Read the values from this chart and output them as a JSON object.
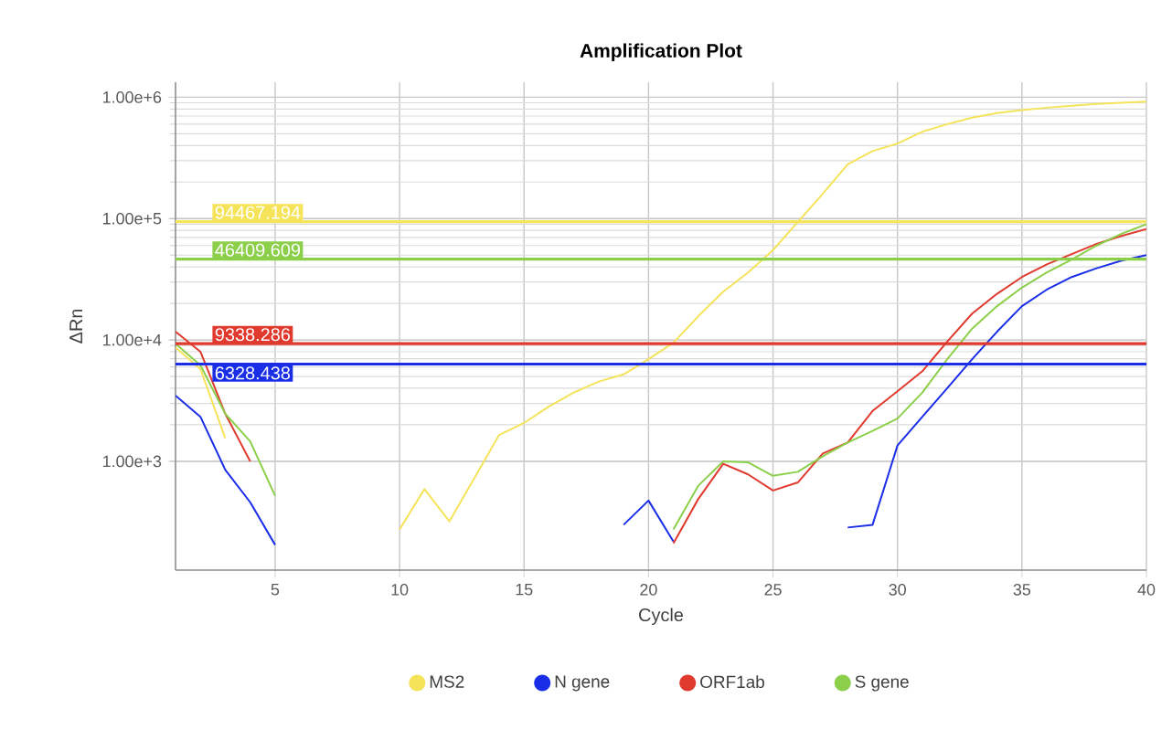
{
  "chart_data": {
    "type": "line",
    "title": "Amplification Plot",
    "xlabel": "Cycle",
    "ylabel": "ΔRn",
    "x": [
      1,
      2,
      3,
      4,
      5,
      6,
      7,
      8,
      9,
      10,
      11,
      12,
      13,
      14,
      15,
      16,
      17,
      18,
      19,
      20,
      21,
      22,
      23,
      24,
      25,
      26,
      27,
      28,
      29,
      30,
      31,
      32,
      33,
      34,
      35,
      36,
      37,
      38,
      39,
      40
    ],
    "series": [
      {
        "name": "MS2",
        "color": "#f5e35a",
        "values": [
          8700,
          5750,
          1550,
          null,
          null,
          null,
          null,
          null,
          null,
          275,
          590,
          320,
          725,
          1650,
          2070,
          2830,
          3690,
          4540,
          5200,
          6950,
          9500,
          15700,
          25000,
          36000,
          55000,
          94000,
          160000,
          280000,
          360000,
          415000,
          520000,
          600000,
          680000,
          740000,
          785000,
          820000,
          850000,
          880000,
          900000,
          920000
        ]
      },
      {
        "name": "N gene",
        "color": "#1a2ee8",
        "values": [
          3480,
          2330,
          850,
          460,
          205,
          null,
          null,
          null,
          null,
          null,
          null,
          null,
          null,
          null,
          null,
          null,
          null,
          null,
          300,
          475,
          218,
          null,
          null,
          null,
          null,
          null,
          null,
          285,
          300,
          1350,
          2330,
          4000,
          6950,
          11700,
          19000,
          26000,
          33000,
          39000,
          45000,
          50000
        ]
      },
      {
        "name": "ORF1ab",
        "color": "#e03a2e",
        "values": [
          11700,
          8000,
          2460,
          1000,
          null,
          null,
          null,
          null,
          null,
          null,
          null,
          null,
          null,
          null,
          null,
          null,
          null,
          null,
          null,
          null,
          211,
          490,
          955,
          780,
          575,
          670,
          1160,
          1430,
          2600,
          3780,
          5530,
          9700,
          16500,
          24000,
          33000,
          42000,
          51000,
          62000,
          72000,
          82000
        ]
      },
      {
        "name": "S gene",
        "color": "#8bcf4a",
        "values": [
          9300,
          6200,
          2460,
          1460,
          520,
          null,
          null,
          null,
          null,
          null,
          null,
          null,
          null,
          null,
          null,
          null,
          null,
          null,
          null,
          null,
          275,
          630,
          1000,
          980,
          760,
          820,
          1100,
          1430,
          1780,
          2250,
          3690,
          6950,
          12400,
          19000,
          27000,
          36000,
          46000,
          60000,
          75000,
          90000
        ]
      }
    ],
    "ref_lines": [
      {
        "axis": "y",
        "value": 94467.194,
        "label": "94467.194",
        "color": "#f5e35a"
      },
      {
        "axis": "y",
        "value": 46409.609,
        "label": "46409.609",
        "color": "#8bcf4a"
      },
      {
        "axis": "y",
        "value": 9338.286,
        "label": "9338.286",
        "color": "#e03a2e"
      },
      {
        "axis": "y",
        "value": 6328.438,
        "label": "6328.438",
        "color": "#1a2ee8"
      }
    ],
    "xlim": [
      1,
      40
    ],
    "xticks": [
      5,
      10,
      15,
      20,
      25,
      30,
      35,
      40
    ],
    "ylim": [
      127,
      1330000
    ],
    "yticks": [
      {
        "value": 1000,
        "label": "1.00e+3"
      },
      {
        "value": 10000,
        "label": "1.00e+4"
      },
      {
        "value": 100000,
        "label": "1.00e+5"
      },
      {
        "value": 1000000,
        "label": "1.00e+6"
      }
    ],
    "log": true,
    "grid": true,
    "legend": "bottom",
    "marker": "none",
    "line_style": "solid"
  }
}
